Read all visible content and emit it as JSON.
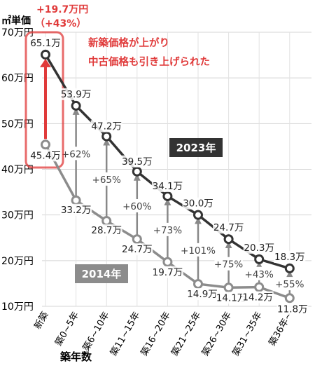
{
  "chart_data": {
    "type": "line",
    "unit_label": "㎡単価",
    "xlabel": "築年数",
    "categories": [
      "新築",
      "築0~5年",
      "築6~10年",
      "築11~15年",
      "築16~20年",
      "築21~25年",
      "築26~30年",
      "築31~35年",
      "築36年~"
    ],
    "y_ticks": [
      {
        "value": 10,
        "label": "10万円"
      },
      {
        "value": 20,
        "label": "20万円"
      },
      {
        "value": 30,
        "label": "30万円"
      },
      {
        "value": 40,
        "label": "40万円"
      },
      {
        "value": 50,
        "label": "50万円"
      },
      {
        "value": 60,
        "label": "60万円"
      },
      {
        "value": 70,
        "label": "70万円"
      }
    ],
    "ylim": [
      10,
      70
    ],
    "grid": true,
    "series": [
      {
        "name": "2023年",
        "color": "#333333",
        "values": [
          65.1,
          53.9,
          47.2,
          39.5,
          34.1,
          30.0,
          24.7,
          20.3,
          18.3
        ],
        "labels": [
          "65.1万",
          "53.9万",
          "47.2万",
          "39.5万",
          "34.1万",
          "30.0万",
          "24.7万",
          "20.3万",
          "18.3万"
        ]
      },
      {
        "name": "2014年",
        "color": "#8c8c8c",
        "values": [
          45.4,
          33.2,
          28.7,
          24.7,
          19.7,
          14.9,
          14.1,
          14.2,
          11.8
        ],
        "labels": [
          "45.4万",
          "33.2万",
          "28.7万",
          "24.7万",
          "19.7万",
          "14.9万",
          "14.1万",
          "14.2万",
          "11.8万"
        ]
      }
    ],
    "increase_labels": [
      "+62%",
      "+65%",
      "+60%",
      "+73%",
      "+101%",
      "+75%",
      "+43%",
      "+55%"
    ],
    "highlight": {
      "amount": "+19.7万円",
      "percent": "（+43%）",
      "note_line1": "新築価格が上がり",
      "note_line2": "中古価格も引き上げられた",
      "color": "#e03a3a"
    }
  }
}
